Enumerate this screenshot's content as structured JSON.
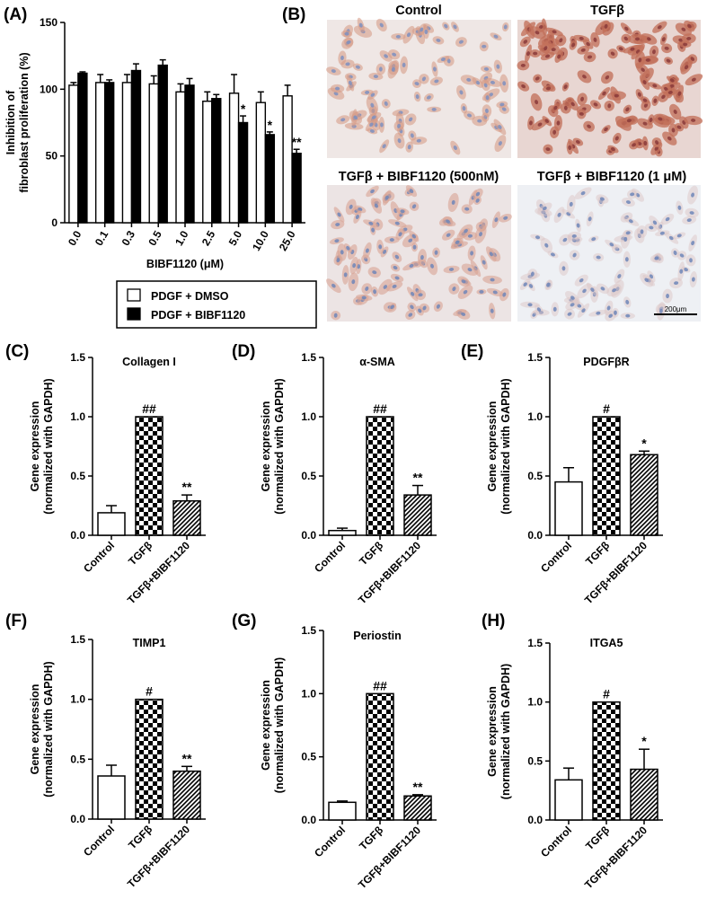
{
  "panels": {
    "A": {
      "label": "(A)",
      "chart_data": {
        "type": "bar",
        "categories": [
          "0.0",
          "0.1",
          "0.3",
          "0.5",
          "1.0",
          "2.5",
          "5.0",
          "10.0",
          "25.0"
        ],
        "series": [
          {
            "name": "PDGF + DMSO",
            "values": [
              103,
              105,
              105,
              104,
              98,
              91,
              97,
              90,
              95
            ],
            "errors": [
              2,
              6,
              6,
              6,
              6,
              7,
              14,
              8,
              8
            ],
            "fill": "white"
          },
          {
            "name": "PDGF + BIBF1120",
            "values": [
              112,
              105,
              114,
              118,
              103,
              93,
              75,
              66,
              52
            ],
            "errors": [
              1,
              2,
              5,
              4,
              5,
              3,
              5,
              2,
              3
            ],
            "fill": "black"
          }
        ],
        "significance": [
          "",
          "",
          "",
          "",
          "",
          "",
          "*",
          "*",
          "**"
        ],
        "xlabel": "BIBF1120 (μM)",
        "ylabel_lines": [
          "Inhibition of",
          "fibroblast proliferation (%)"
        ],
        "ylim": [
          0,
          150
        ],
        "yticks": [
          "0",
          "50",
          "100",
          "150"
        ]
      }
    },
    "B": {
      "label": "(B)",
      "images": [
        {
          "title": "Control",
          "stain": "light"
        },
        {
          "title": "TGFβ",
          "stain": "dense"
        },
        {
          "title": "TGFβ + BIBF1120 (500nM)",
          "stain": "medium"
        },
        {
          "title": "TGFβ + BIBF1120 (1 μM)",
          "stain": "faint"
        }
      ],
      "scale_bar": "200μm"
    },
    "gene_panels": [
      {
        "label": "(C)",
        "chart_data": {
          "type": "bar",
          "title": "Collagen I",
          "categories": [
            "Control",
            "TGFβ",
            "TGFβ+BIBF1120"
          ],
          "values": [
            0.19,
            1.0,
            0.29
          ],
          "errors": [
            0.06,
            0.0,
            0.05
          ],
          "significance": [
            "",
            "##",
            "**"
          ],
          "ylim": [
            0,
            1.5
          ],
          "yticks": [
            "0.0",
            "0.5",
            "1.0",
            "1.5"
          ],
          "ylabel_lines": [
            "Gene expression",
            "(normalized with GAPDH)"
          ]
        }
      },
      {
        "label": "(D)",
        "chart_data": {
          "type": "bar",
          "title": "α-SMA",
          "categories": [
            "Control",
            "TGFβ",
            "TGFβ+BIBF1120"
          ],
          "values": [
            0.04,
            1.0,
            0.34
          ],
          "errors": [
            0.02,
            0.0,
            0.08
          ],
          "significance": [
            "",
            "##",
            "**"
          ],
          "ylim": [
            0,
            1.5
          ],
          "yticks": [
            "0.0",
            "0.5",
            "1.0",
            "1.5"
          ],
          "ylabel_lines": [
            "Gene expression",
            "(normalized with GAPDH)"
          ]
        }
      },
      {
        "label": "(E)",
        "chart_data": {
          "type": "bar",
          "title": "PDGFβR",
          "categories": [
            "Control",
            "TGFβ",
            "TGFβ+BIBF1120"
          ],
          "values": [
            0.45,
            1.0,
            0.68
          ],
          "errors": [
            0.12,
            0.0,
            0.03
          ],
          "significance": [
            "",
            "#",
            "*"
          ],
          "ylim": [
            0,
            1.5
          ],
          "yticks": [
            "0.0",
            "0.5",
            "1.0",
            "1.5"
          ],
          "ylabel_lines": [
            "Gene expression",
            "(normalized with GAPDH)"
          ]
        }
      },
      {
        "label": "(F)",
        "chart_data": {
          "type": "bar",
          "title": "TIMP1",
          "categories": [
            "Control",
            "TGFβ",
            "TGFβ+BIBF1120"
          ],
          "values": [
            0.36,
            1.0,
            0.4
          ],
          "errors": [
            0.09,
            0.0,
            0.04
          ],
          "significance": [
            "",
            "#",
            "**"
          ],
          "ylim": [
            0,
            1.5
          ],
          "yticks": [
            "0.0",
            "0.5",
            "1.0",
            "1.5"
          ],
          "ylabel_lines": [
            "Gene expression",
            "(normalized with GAPDH)"
          ]
        }
      },
      {
        "label": "(G)",
        "chart_data": {
          "type": "bar",
          "title": "Periostin",
          "categories": [
            "Control",
            "TGFβ",
            "TGFβ+BIBF1120"
          ],
          "values": [
            0.14,
            1.0,
            0.19
          ],
          "errors": [
            0.01,
            0.0,
            0.01
          ],
          "significance": [
            "",
            "##",
            "**"
          ],
          "ylim": [
            0,
            1.5
          ],
          "yticks": [
            "0.0",
            "0.5",
            "1.0",
            "1.5"
          ],
          "ylabel_lines": [
            "Gene expression",
            "(normalized with GAPDH)"
          ]
        }
      },
      {
        "label": "(H)",
        "chart_data": {
          "type": "bar",
          "title": "ITGA5",
          "categories": [
            "Control",
            "TGFβ",
            "TGFβ+BIBF1120"
          ],
          "values": [
            0.34,
            1.0,
            0.43
          ],
          "errors": [
            0.1,
            0.0,
            0.17
          ],
          "significance": [
            "",
            "#",
            "*"
          ],
          "ylim": [
            0,
            1.5
          ],
          "yticks": [
            "0.0",
            "0.5",
            "1.0",
            "1.5"
          ],
          "ylabel_lines": [
            "Gene expression",
            "(normalized with GAPDH)"
          ]
        }
      }
    ]
  },
  "colors": {
    "ink": "#000000",
    "background": "#ffffff",
    "stain_brown": "#b5624a",
    "stain_blue": "#6f86b8",
    "tissue_bg": "#efe6e4"
  }
}
